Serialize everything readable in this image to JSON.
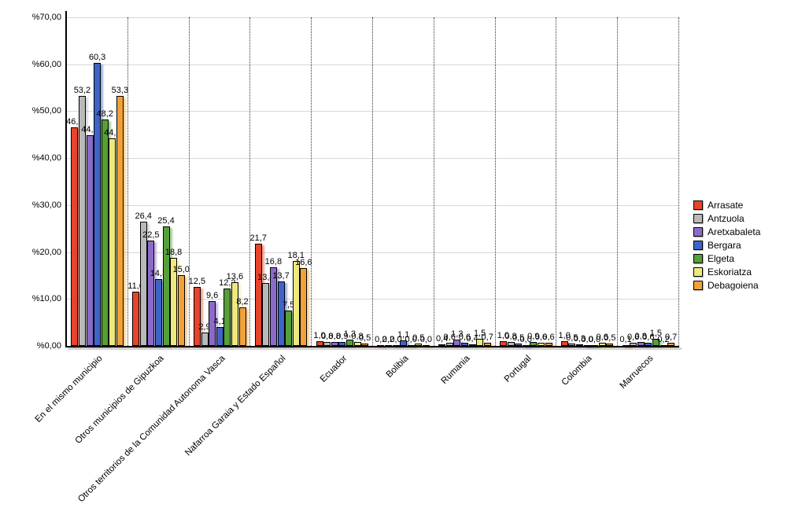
{
  "chart_data": {
    "type": "bar",
    "title": "",
    "xlabel": "",
    "ylabel": "",
    "ylim": [
      0,
      70
    ],
    "y_tick_prefix": "%",
    "y_tick_labels": [
      "%0,00",
      "%10,00",
      "%20,00",
      "%30,00",
      "%40,00",
      "%50,00",
      "%60,00",
      "%70,00"
    ],
    "grid": "horizontal-solid-plus-vertical-dotted-separators",
    "legend_position": "right",
    "decimal_separator": ",",
    "categories": [
      "En el mismo municipio",
      "Otros municipios de Gipuzkoa",
      "Otros territorios de la Comunidad Autonoma Vasca",
      "Nafarroa Garaia y Estado Español",
      "Ecuador",
      "Bolibia",
      "Rumania",
      "Portugal",
      "Colombia",
      "Marruecos"
    ],
    "series": [
      {
        "name": "Arrasate",
        "color": "#e8432c",
        "values": [
          46.6,
          11.6,
          12.5,
          21.7,
          1.0,
          0.2,
          0.4,
          1.0,
          1.0,
          0.1
        ]
      },
      {
        "name": "Antzuola",
        "color": "#b9b9b9",
        "values": [
          53.2,
          26.4,
          2.9,
          13.4,
          0.8,
          0.2,
          0.6,
          0.8,
          0.5,
          0.6
        ]
      },
      {
        "name": "Aretxabaleta",
        "color": "#8b6bc9",
        "values": [
          44.8,
          22.5,
          9.6,
          16.8,
          0.8,
          0.0,
          1.3,
          0.5,
          0.3,
          0.8
        ]
      },
      {
        "name": "Bergara",
        "color": "#3e64c8",
        "values": [
          60.3,
          14.3,
          4.1,
          13.7,
          0.9,
          1.1,
          0.6,
          0.0,
          0.0,
          0.6
        ]
      },
      {
        "name": "Elgeta",
        "color": "#55a038",
        "values": [
          48.2,
          25.4,
          12.2,
          7.5,
          1.3,
          0.0,
          0.4,
          0.9,
          0.0,
          1.5
        ]
      },
      {
        "name": "Eskoriatza",
        "color": "#ece97f",
        "values": [
          44.2,
          18.8,
          13.6,
          18.1,
          0.8,
          0.5,
          1.5,
          0.6,
          0.6,
          0.2
        ]
      },
      {
        "name": "Debagoiena",
        "color": "#f1a13a",
        "values": [
          53.3,
          15.0,
          8.2,
          16.6,
          0.5,
          0.0,
          0.7,
          0.6,
          0.5,
          0.7
        ]
      }
    ]
  }
}
